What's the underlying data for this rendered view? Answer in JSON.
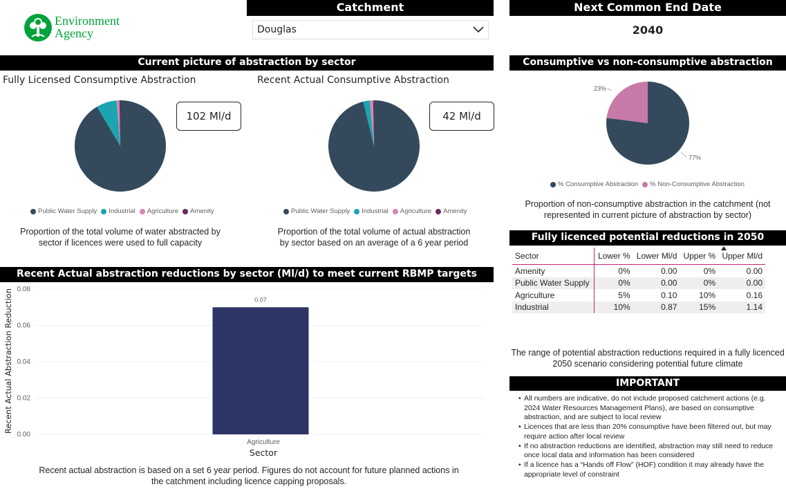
{
  "logo": {
    "line1": "Environment",
    "line2": "Agency",
    "color": "#00a33b"
  },
  "catchment": {
    "header": "Catchment",
    "selected": "Douglas"
  },
  "end_date": {
    "header": "Next Common End Date",
    "value": "2040"
  },
  "sector_picture": {
    "header": "Current picture of abstraction by sector",
    "licensed": {
      "title": "Fully Licensed Consumptive Abstraction",
      "kpi": "102 Ml/d",
      "caption1": "Proportion of the total volume of water abstracted by",
      "caption2": "sector if licences were used to full capacity"
    },
    "actual": {
      "title": "Recent Actual Consumptive Abstraction",
      "kpi": "42 Ml/d",
      "caption1": "Proportion of the total volume of actual abstraction",
      "caption2": "by sector based on an average of a 6 year period"
    },
    "legend": [
      {
        "label": "Public Water Supply",
        "color": "#344a5c"
      },
      {
        "label": "Industrial",
        "color": "#1aa5b0"
      },
      {
        "label": "Agriculture",
        "color": "#d586b3"
      },
      {
        "label": "Amenity",
        "color": "#6b2a5e"
      }
    ]
  },
  "consumptive": {
    "header": "Consumptive vs non-consumptive abstraction",
    "label_non": "23%",
    "label_cons": "77%",
    "legend": [
      {
        "label": "% Consumptive Abstraction",
        "color": "#344a5c"
      },
      {
        "label": "% Non-Consumptive Abstraction",
        "color": "#c77aa8"
      }
    ],
    "caption1": "Proportion of non-consumptive abstraction in the catchment (not",
    "caption2": "represented in current picture of abstraction by sector)"
  },
  "reductions_2050": {
    "header": "Fully licenced potential reductions in 2050",
    "columns": [
      "Sector",
      "Lower %",
      "Lower Ml/d",
      "Upper %",
      "Upper Ml/d"
    ],
    "rows": [
      [
        "Amenity",
        "0%",
        "0.00",
        "0%",
        "0.00"
      ],
      [
        "Public Water Supply",
        "0%",
        "0.00",
        "0%",
        "0.00"
      ],
      [
        "Agriculture",
        "5%",
        "0.10",
        "10%",
        "0.16"
      ],
      [
        "Industrial",
        "10%",
        "0.87",
        "15%",
        "1.14"
      ]
    ],
    "caption1": "The range of potential abstraction reductions required in a fully licenced",
    "caption2": "2050 scenario considering potential future climate"
  },
  "important": {
    "header": "IMPORTANT",
    "items": [
      "All numbers are indicative, do not include proposed catchment actions (e.g. 2024 Water Resources Management Plans), are based on consumptive abstraction, and are subject to local review",
      "Licences that are less than 20% consumptive have been filtered out, but may require action after local review",
      "If no abstraction reductions are identified, abstraction may still need to reduce once local data and information has been considered",
      "If a licence has a “Hands off Flow” (HOF) condition it may already have the appropriate level of constraint"
    ]
  },
  "bar_section": {
    "header": "Recent Actual abstraction reductions by sector (Ml/d) to meet current RBMP targets",
    "caption1": "Recent actual abstraction is based on a set 6 year period. Figures do not account for future planned actions in",
    "caption2": "the catchment including licence capping proposals."
  },
  "chart_data": [
    {
      "type": "pie",
      "categories": [
        "Public Water Supply",
        "Industrial",
        "Agriculture",
        "Amenity"
      ],
      "values": [
        91.5,
        7.2,
        1.0,
        0.3
      ],
      "colors": [
        "#344a5c",
        "#1aa5b0",
        "#d586b3",
        "#6b2a5e"
      ]
    },
    {
      "type": "pie",
      "categories": [
        "Public Water Supply",
        "Industrial",
        "Agriculture",
        "Amenity"
      ],
      "values": [
        96.2,
        2.3,
        1.2,
        0.3
      ],
      "colors": [
        "#344a5c",
        "#1aa5b0",
        "#d586b3",
        "#6b2a5e"
      ]
    },
    {
      "type": "pie",
      "categories": [
        "% Consumptive Abstraction",
        "% Non-Consumptive Abstraction"
      ],
      "values": [
        77,
        23
      ],
      "colors": [
        "#344a5c",
        "#c77aa8"
      ]
    },
    {
      "type": "bar",
      "categories": [
        "Agriculture"
      ],
      "values": [
        0.07
      ],
      "value_labels": [
        "0.07"
      ],
      "xlabel": "Sector",
      "ylabel": "Recent Actual Abstraction Reduction",
      "ylim": [
        0,
        0.08
      ],
      "yticks": [
        "0.00",
        "0.02",
        "0.04",
        "0.06",
        "0.08"
      ],
      "bar_color": "#2c3566"
    }
  ]
}
